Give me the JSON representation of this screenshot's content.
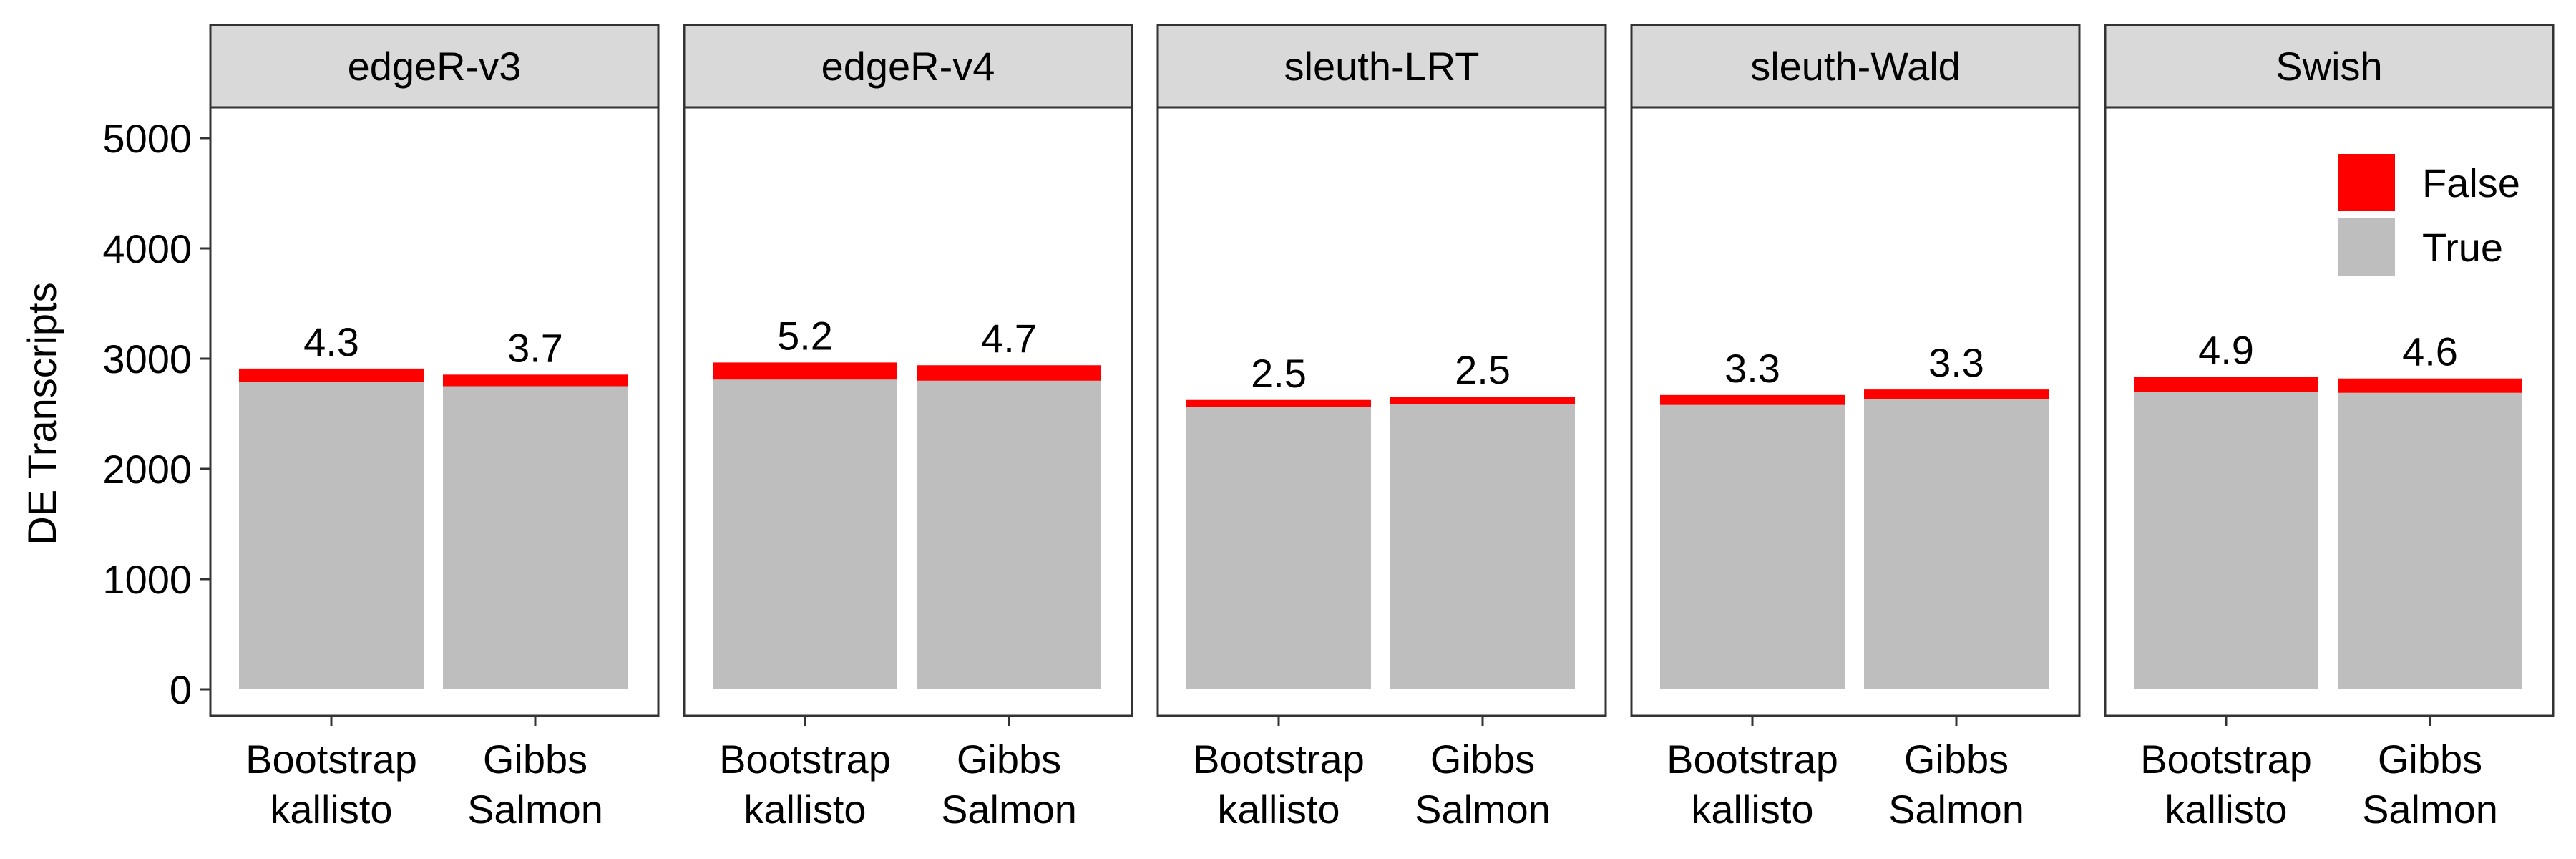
{
  "chart_data": {
    "type": "bar",
    "stacked": true,
    "ylabel": "DE Transcripts",
    "xlabel": "",
    "ylim": [
      0,
      5300
    ],
    "yticks": [
      0,
      1000,
      2000,
      3000,
      4000,
      5000
    ],
    "categories": [
      [
        "Bootstrap",
        "kallisto"
      ],
      [
        "Gibbs",
        "Salmon"
      ]
    ],
    "legend": {
      "position": "top-right",
      "entries": [
        {
          "name": "False",
          "color": "#FF0000"
        },
        {
          "name": "True",
          "color": "#BEBEBE"
        }
      ]
    },
    "facets": [
      {
        "name": "edgeR-v3",
        "true_values": [
          2790,
          2750
        ],
        "false_values": [
          120,
          105
        ],
        "labels": [
          "4.3",
          "3.7"
        ]
      },
      {
        "name": "edgeR-v4",
        "true_values": [
          2810,
          2800
        ],
        "false_values": [
          155,
          140
        ],
        "labels": [
          "5.2",
          "4.7"
        ]
      },
      {
        "name": "sleuth-LRT",
        "true_values": [
          2560,
          2590
        ],
        "false_values": [
          65,
          65
        ],
        "labels": [
          "2.5",
          "2.5"
        ]
      },
      {
        "name": "sleuth-Wald",
        "true_values": [
          2580,
          2630
        ],
        "false_values": [
          90,
          90
        ],
        "labels": [
          "3.3",
          "3.3"
        ]
      },
      {
        "name": "Swish",
        "true_values": [
          2700,
          2690
        ],
        "false_values": [
          135,
          130
        ],
        "labels": [
          "4.9",
          "4.6"
        ]
      }
    ],
    "grid": false
  }
}
